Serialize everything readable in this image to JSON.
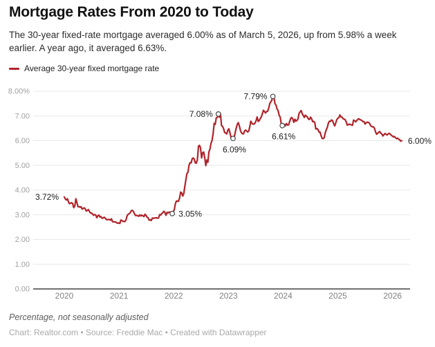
{
  "header": {
    "title": "Mortgage Rates From 2020 to Today",
    "subtitle": "The 30-year fixed-rate mortgage averaged 6.00% as of March 5, 2026, up from 5.98% a week earlier. A year ago, it averaged 6.63%."
  },
  "legend": {
    "label": "Average 30-year fixed mortgage rate",
    "color": "#b0232a"
  },
  "footer": {
    "note": "Percentage, not seasonally adjusted",
    "attribution": "Chart: Realtor.com • Source: Freddie Mac • Created with Datawrapper"
  },
  "colors": {
    "line": "#b0232a",
    "grid": "#e8e8e8",
    "axis": "#404040",
    "marker_stroke": "#474747"
  },
  "chart_data": {
    "type": "line",
    "title": "Mortgage Rates From 2020 to Today",
    "xlabel": "",
    "ylabel": "Percentage, not seasonally adjusted",
    "ylim": [
      0,
      8
    ],
    "xlim": [
      2019.4,
      2026.35
    ],
    "grid": true,
    "legend_position": "top-left",
    "x_ticks": [
      2020,
      2021,
      2022,
      2023,
      2024,
      2025,
      2026
    ],
    "y_ticks": [
      {
        "v": 8,
        "label": "8.00%"
      },
      {
        "v": 7,
        "label": "7.00"
      },
      {
        "v": 6,
        "label": "6.00"
      },
      {
        "v": 5,
        "label": "5.00"
      },
      {
        "v": 4,
        "label": "4.00"
      },
      {
        "v": 3,
        "label": "3.00"
      },
      {
        "v": 2,
        "label": "2.00"
      },
      {
        "v": 1,
        "label": "1.00"
      },
      {
        "v": 0,
        "label": "0.00"
      }
    ],
    "series": [
      {
        "name": "Average 30-year fixed mortgage rate",
        "color": "#b0232a",
        "start_year": 2020,
        "points_per_year": 52.2,
        "values": [
          3.72,
          3.64,
          3.6,
          3.65,
          3.51,
          3.45,
          3.47,
          3.49,
          3.45,
          3.29,
          3.36,
          3.65,
          3.5,
          3.33,
          3.33,
          3.31,
          3.33,
          3.23,
          3.26,
          3.28,
          3.24,
          3.15,
          3.18,
          3.21,
          3.13,
          3.07,
          3.07,
          3.03,
          2.98,
          3.01,
          2.99,
          2.88,
          2.96,
          2.99,
          2.91,
          2.93,
          2.86,
          2.87,
          2.9,
          2.87,
          2.81,
          2.8,
          2.81,
          2.81,
          2.78,
          2.84,
          2.72,
          2.72,
          2.71,
          2.71,
          2.67,
          2.66,
          2.67,
          2.65,
          2.79,
          2.77,
          2.73,
          2.73,
          2.73,
          2.81,
          2.97,
          3.02,
          3.05,
          3.09,
          3.17,
          3.18,
          3.13,
          3.04,
          2.97,
          2.98,
          2.96,
          2.94,
          3.0,
          2.95,
          2.99,
          2.96,
          2.93,
          3.02,
          2.98,
          2.9,
          2.88,
          2.78,
          2.8,
          2.77,
          2.87,
          2.86,
          2.87,
          2.87,
          2.88,
          2.86,
          2.88,
          3.01,
          2.99,
          3.05,
          3.09,
          3.14,
          3.09,
          2.98,
          3.1,
          3.07,
          3.11,
          3.1,
          3.12,
          3.05,
          3.11,
          3.22,
          3.45,
          3.56,
          3.55,
          3.55,
          3.69,
          3.92,
          3.89,
          3.76,
          3.85,
          4.16,
          4.42,
          4.67,
          4.72,
          5.0,
          5.11,
          5.1,
          5.27,
          5.3,
          5.25,
          5.1,
          5.09,
          5.23,
          5.78,
          5.81,
          5.7,
          5.3,
          5.51,
          5.54,
          5.3,
          4.99,
          5.22,
          5.13,
          5.55,
          5.66,
          5.89,
          6.02,
          6.29,
          6.7,
          6.66,
          6.92,
          6.94,
          7.08,
          6.95,
          7.08,
          6.61,
          6.58,
          6.49,
          6.33,
          6.31,
          6.27,
          6.42,
          6.48,
          6.33,
          6.15,
          6.13,
          6.09,
          6.12,
          6.32,
          6.5,
          6.65,
          6.73,
          6.6,
          6.42,
          6.32,
          6.28,
          6.27,
          6.39,
          6.43,
          6.39,
          6.35,
          6.39,
          6.57,
          6.79,
          6.71,
          6.67,
          6.67,
          6.71,
          6.81,
          6.96,
          6.78,
          6.81,
          6.9,
          6.96,
          7.09,
          7.23,
          7.18,
          7.12,
          7.18,
          7.19,
          7.31,
          7.49,
          7.57,
          7.63,
          7.79,
          7.76,
          7.5,
          7.44,
          7.29,
          7.22,
          7.03,
          6.95,
          6.67,
          6.61,
          6.62,
          6.66,
          6.6,
          6.69,
          6.63,
          6.64,
          6.77,
          6.9,
          6.94,
          6.88,
          6.74,
          6.87,
          6.79,
          6.82,
          6.88,
          7.1,
          7.17,
          7.22,
          7.09,
          7.02,
          6.94,
          7.03,
          6.99,
          6.95,
          6.87,
          6.86,
          6.95,
          6.89,
          6.77,
          6.78,
          6.73,
          6.47,
          6.49,
          6.46,
          6.35,
          6.35,
          6.2,
          6.09,
          6.08,
          6.12,
          6.32,
          6.44,
          6.54,
          6.72,
          6.79,
          6.78,
          6.84,
          6.81,
          6.69,
          6.6,
          6.72,
          6.85,
          6.91,
          6.93,
          7.04,
          6.96,
          6.95,
          6.89,
          6.87,
          6.85,
          6.76,
          6.63,
          6.65,
          6.67,
          6.65,
          6.64,
          6.62,
          6.83,
          6.81,
          6.76,
          6.81,
          6.86,
          6.89,
          6.85,
          6.84,
          6.81,
          6.77,
          6.77,
          6.67,
          6.72,
          6.75,
          6.74,
          6.72,
          6.63,
          6.58,
          6.56,
          6.56,
          6.5,
          6.35,
          6.26,
          6.3,
          6.34,
          6.37,
          6.3,
          6.27,
          6.19,
          6.24,
          6.29,
          6.26,
          6.23,
          6.27,
          6.3,
          6.26,
          6.22,
          6.19,
          6.15,
          6.17,
          6.12,
          6.08,
          6.1,
          6.06,
          6.04,
          5.98,
          6.0
        ]
      }
    ],
    "annotations": [
      {
        "label": "3.72%",
        "index": 0,
        "marker": false,
        "placement": "left"
      },
      {
        "label": "3.05%",
        "index": 103,
        "marker": true,
        "placement": "right"
      },
      {
        "label": "7.08%",
        "index": 147,
        "marker": true,
        "placement": "left"
      },
      {
        "label": "6.09%",
        "index": 161,
        "marker": true,
        "placement": "below"
      },
      {
        "label": "7.79%",
        "index": 199,
        "marker": true,
        "placement": "left"
      },
      {
        "label": "6.61%",
        "index": 208,
        "marker": true,
        "placement": "below"
      },
      {
        "label": "6.00%",
        "index": 322,
        "marker": false,
        "placement": "right"
      }
    ]
  }
}
